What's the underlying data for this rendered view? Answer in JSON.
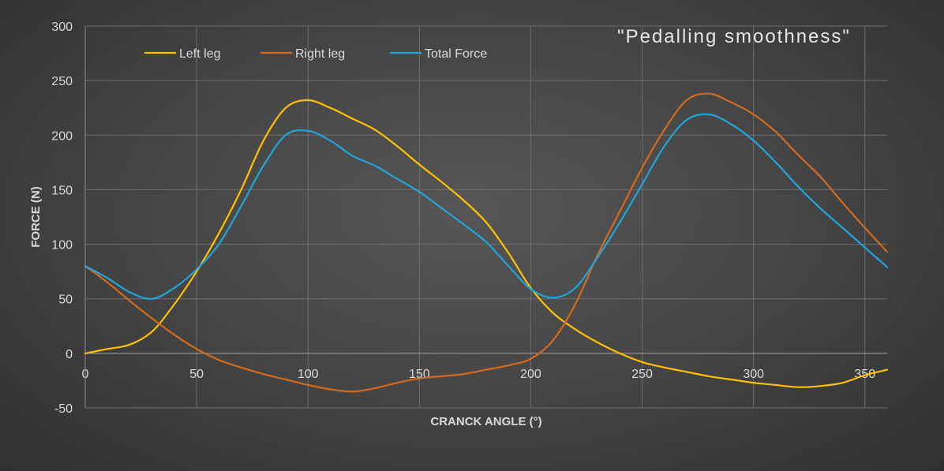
{
  "chart_data": {
    "type": "line",
    "title": "\"Pedalling smoothness\"",
    "xlabel": "CRANCK ANGLE (°)",
    "ylabel": "FORCE (N)",
    "xlim": [
      0,
      360
    ],
    "ylim": [
      -50,
      300
    ],
    "xticks": [
      0,
      50,
      100,
      150,
      200,
      250,
      300,
      350
    ],
    "yticks": [
      -50,
      0,
      50,
      100,
      150,
      200,
      250,
      300
    ],
    "grid": true,
    "legend_position": "top-left",
    "series": [
      {
        "name": "Left leg",
        "color": "#ffc000",
        "points": [
          [
            0,
            0
          ],
          [
            10,
            4
          ],
          [
            20,
            8
          ],
          [
            30,
            20
          ],
          [
            40,
            45
          ],
          [
            50,
            75
          ],
          [
            60,
            110
          ],
          [
            70,
            150
          ],
          [
            80,
            195
          ],
          [
            90,
            225
          ],
          [
            100,
            232
          ],
          [
            110,
            225
          ],
          [
            120,
            215
          ],
          [
            130,
            205
          ],
          [
            140,
            190
          ],
          [
            150,
            173
          ],
          [
            160,
            157
          ],
          [
            170,
            140
          ],
          [
            180,
            120
          ],
          [
            190,
            92
          ],
          [
            200,
            60
          ],
          [
            210,
            37
          ],
          [
            220,
            22
          ],
          [
            230,
            10
          ],
          [
            240,
            0
          ],
          [
            250,
            -8
          ],
          [
            260,
            -13
          ],
          [
            270,
            -17
          ],
          [
            280,
            -21
          ],
          [
            290,
            -24
          ],
          [
            300,
            -27
          ],
          [
            310,
            -29
          ],
          [
            320,
            -31
          ],
          [
            330,
            -30
          ],
          [
            340,
            -27
          ],
          [
            350,
            -20
          ],
          [
            360,
            -15
          ]
        ]
      },
      {
        "name": "Right leg",
        "color": "#d46a1c",
        "points": [
          [
            0,
            80
          ],
          [
            10,
            65
          ],
          [
            20,
            48
          ],
          [
            30,
            32
          ],
          [
            40,
            17
          ],
          [
            50,
            4
          ],
          [
            60,
            -6
          ],
          [
            70,
            -13
          ],
          [
            80,
            -19
          ],
          [
            90,
            -24
          ],
          [
            100,
            -29
          ],
          [
            110,
            -33
          ],
          [
            120,
            -35
          ],
          [
            130,
            -32
          ],
          [
            140,
            -27
          ],
          [
            150,
            -23
          ],
          [
            160,
            -21
          ],
          [
            170,
            -19
          ],
          [
            180,
            -15
          ],
          [
            190,
            -11
          ],
          [
            200,
            -5
          ],
          [
            210,
            12
          ],
          [
            220,
            45
          ],
          [
            230,
            90
          ],
          [
            240,
            130
          ],
          [
            250,
            170
          ],
          [
            260,
            205
          ],
          [
            270,
            232
          ],
          [
            280,
            238
          ],
          [
            290,
            230
          ],
          [
            300,
            219
          ],
          [
            310,
            203
          ],
          [
            320,
            182
          ],
          [
            330,
            162
          ],
          [
            340,
            138
          ],
          [
            350,
            115
          ],
          [
            360,
            93
          ]
        ]
      },
      {
        "name": "Total Force",
        "color": "#1ea5dc",
        "points": [
          [
            0,
            80
          ],
          [
            10,
            69
          ],
          [
            20,
            56
          ],
          [
            30,
            50
          ],
          [
            40,
            60
          ],
          [
            50,
            77
          ],
          [
            60,
            100
          ],
          [
            70,
            135
          ],
          [
            80,
            172
          ],
          [
            90,
            200
          ],
          [
            100,
            204
          ],
          [
            110,
            195
          ],
          [
            120,
            181
          ],
          [
            130,
            172
          ],
          [
            140,
            160
          ],
          [
            150,
            148
          ],
          [
            160,
            133
          ],
          [
            170,
            118
          ],
          [
            180,
            102
          ],
          [
            190,
            80
          ],
          [
            200,
            59
          ],
          [
            210,
            51
          ],
          [
            220,
            60
          ],
          [
            230,
            88
          ],
          [
            240,
            120
          ],
          [
            250,
            155
          ],
          [
            260,
            190
          ],
          [
            270,
            214
          ],
          [
            280,
            219
          ],
          [
            290,
            210
          ],
          [
            300,
            195
          ],
          [
            310,
            175
          ],
          [
            320,
            153
          ],
          [
            330,
            133
          ],
          [
            340,
            115
          ],
          [
            350,
            97
          ],
          [
            360,
            79
          ]
        ]
      }
    ]
  }
}
